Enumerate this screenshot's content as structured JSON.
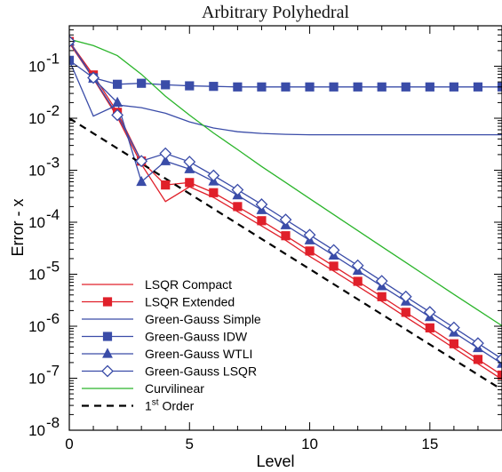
{
  "chart_data": {
    "type": "line",
    "title": "Arbitrary Polyhedral",
    "xlabel": "Level",
    "ylabel": "Error - x",
    "xlim": [
      0,
      18
    ],
    "ylim": [
      1e-08,
      0.6
    ],
    "y_scale": "log",
    "x_ticks": [
      "0",
      "5",
      "10",
      "15"
    ],
    "y_ticks": [
      {
        "base": "10",
        "exp": "-1"
      },
      {
        "base": "10",
        "exp": "-2"
      },
      {
        "base": "10",
        "exp": "-3"
      },
      {
        "base": "10",
        "exp": "-4"
      },
      {
        "base": "10",
        "exp": "-5"
      },
      {
        "base": "10",
        "exp": "-6"
      },
      {
        "base": "10",
        "exp": "-7"
      },
      {
        "base": "10",
        "exp": "-8"
      }
    ],
    "grid": false,
    "legend_position": "bottom-left",
    "series": [
      {
        "name": "LSQR Compact",
        "color": "#e0202a",
        "marker": "none",
        "dash": "solid",
        "x": [
          0,
          1,
          2,
          3,
          4,
          5,
          6,
          7,
          8,
          9,
          10,
          11,
          12,
          13,
          14,
          15,
          16,
          17,
          18
        ],
        "y": [
          0.28,
          0.058,
          0.0105,
          0.0013,
          0.00025,
          0.00048,
          0.0003,
          0.00016,
          8.5e-05,
          4.5e-05,
          2.2e-05,
          1.15e-05,
          5.9e-06,
          3e-06,
          1.5e-06,
          7.6e-07,
          3.8e-07,
          1.9e-07,
          9.5e-08
        ]
      },
      {
        "name": "LSQR Extended",
        "color": "#e0202a",
        "marker": "square",
        "dash": "solid",
        "x": [
          0,
          1,
          2,
          3,
          4,
          5,
          6,
          7,
          8,
          9,
          10,
          11,
          12,
          13,
          14,
          15,
          16,
          17,
          18
        ],
        "y": [
          0.3,
          0.068,
          0.013,
          0.0015,
          0.00052,
          0.00058,
          0.00037,
          0.0002,
          0.000107,
          5.5e-05,
          2.8e-05,
          1.43e-05,
          7.3e-06,
          3.7e-06,
          1.85e-06,
          9.3e-07,
          4.6e-07,
          2.3e-07,
          1.15e-07
        ]
      },
      {
        "name": "Green-Gauss Simple",
        "color": "#3a4ca8",
        "marker": "none",
        "dash": "solid",
        "x": [
          0,
          1,
          2,
          3,
          4,
          5,
          6,
          7,
          8,
          9,
          10,
          11,
          12,
          13,
          14,
          15,
          16,
          17,
          18
        ],
        "y": [
          0.13,
          0.011,
          0.018,
          0.016,
          0.0125,
          0.0085,
          0.0065,
          0.0055,
          0.0051,
          0.0049,
          0.0048,
          0.0048,
          0.0048,
          0.0048,
          0.0048,
          0.0048,
          0.0048,
          0.0048,
          0.0048
        ]
      },
      {
        "name": "Green-Gauss IDW",
        "color": "#3a4ca8",
        "marker": "square",
        "dash": "solid",
        "x": [
          0,
          1,
          2,
          3,
          4,
          5,
          6,
          7,
          8,
          9,
          10,
          11,
          12,
          13,
          14,
          15,
          16,
          17,
          18
        ],
        "y": [
          0.13,
          0.06,
          0.045,
          0.047,
          0.044,
          0.042,
          0.041,
          0.04,
          0.04,
          0.04,
          0.04,
          0.04,
          0.04,
          0.04,
          0.04,
          0.04,
          0.04,
          0.04,
          0.04
        ]
      },
      {
        "name": "Green-Gauss WTLI",
        "color": "#3a4ca8",
        "marker": "triangle",
        "dash": "solid",
        "x": [
          0,
          1,
          2,
          3,
          4,
          5,
          6,
          7,
          8,
          9,
          10,
          11,
          12,
          13,
          14,
          15,
          16,
          17,
          18
        ],
        "y": [
          0.3,
          0.058,
          0.02,
          0.0006,
          0.0015,
          0.00105,
          0.00061,
          0.00033,
          0.000172,
          8.8e-05,
          4.5e-05,
          2.3e-05,
          1.17e-05,
          5.9e-06,
          3e-06,
          1.5e-06,
          7.6e-07,
          3.8e-07,
          1.9e-07
        ]
      },
      {
        "name": "Green-Gauss LSQR",
        "color": "#3a4ca8",
        "marker": "diamond",
        "dash": "solid",
        "x": [
          0,
          1,
          2,
          3,
          4,
          5,
          6,
          7,
          8,
          9,
          10,
          11,
          12,
          13,
          14,
          15,
          16,
          17,
          18
        ],
        "y": [
          0.3,
          0.06,
          0.0115,
          0.0015,
          0.0021,
          0.00145,
          0.00079,
          0.00042,
          0.00022,
          0.000112,
          5.7e-05,
          2.9e-05,
          1.47e-05,
          7.4e-06,
          3.7e-06,
          1.87e-06,
          9.4e-07,
          4.7e-07,
          2.35e-07
        ]
      },
      {
        "name": "Curvilinear",
        "color": "#2bb52b",
        "marker": "none",
        "dash": "solid",
        "x": [
          0,
          1,
          2,
          3,
          4,
          5,
          6,
          7,
          8,
          9,
          10,
          11,
          12,
          13,
          14,
          15,
          16,
          17,
          18
        ],
        "y": [
          0.33,
          0.25,
          0.16,
          0.07,
          0.0265,
          0.0115,
          0.0052,
          0.0025,
          0.00118,
          0.00058,
          0.000285,
          0.00014,
          6.9e-05,
          3.4e-05,
          1.68e-05,
          8.3e-06,
          4.1e-06,
          2.05e-06,
          1.02e-06
        ]
      },
      {
        "name": "1st Order",
        "name_base": "1",
        "name_sup": "st",
        "name_rest": " Order",
        "color": "#000000",
        "marker": "none",
        "dash": "dashed",
        "x": [
          0,
          18
        ],
        "y": [
          0.01,
          6e-08
        ]
      }
    ]
  }
}
